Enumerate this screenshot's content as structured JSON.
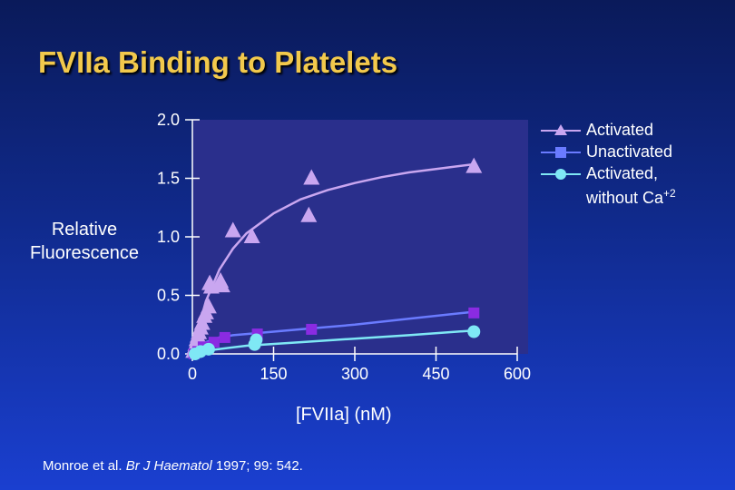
{
  "slide": {
    "title": "FVIIa Binding to Platelets",
    "source_prefix": "Monroe et al. ",
    "source_journal": "Br J Haematol",
    "source_suffix": " 1997; 99: 542."
  },
  "legend": {
    "activated": "Activated",
    "unactivated": "Unactivated",
    "without_ca_line1": "Activated,",
    "without_ca_line2": "without Ca",
    "without_ca_sup": "+2"
  },
  "colors": {
    "activated": "#c9a6f0",
    "unactivated": "#8a2be2",
    "without_ca": "#7fe8f5",
    "axis": "#ffffff",
    "plot_bg": "#2a2f8c"
  },
  "chart_data": {
    "type": "scatter",
    "title": "FVIIa Binding to Platelets",
    "xlabel": "[FVIIa] (nM)",
    "ylabel_line1": "Relative",
    "ylabel_line2": "Fluorescence",
    "xlim": [
      0,
      600
    ],
    "ylim": [
      0,
      2.0
    ],
    "xticks": [
      0,
      150,
      300,
      450,
      600
    ],
    "xtick_labels": [
      "0",
      "150",
      "300",
      "450",
      "600"
    ],
    "yticks": [
      0,
      0.5,
      1.0,
      1.5,
      2.0
    ],
    "ytick_labels": [
      "0.0",
      "0.5",
      "1.0",
      "1.5",
      "2.0"
    ],
    "legend_position": "top-right",
    "series": [
      {
        "name": "Activated",
        "marker": "triangle",
        "color": "#c9a6f0",
        "x": [
          2,
          4,
          6,
          8,
          10,
          12,
          15,
          18,
          22,
          25,
          30,
          32,
          35,
          52,
          55,
          75,
          110,
          215,
          220,
          520
        ],
        "y": [
          0.02,
          0.05,
          0.08,
          0.12,
          0.15,
          0.18,
          0.22,
          0.26,
          0.32,
          0.35,
          0.4,
          0.6,
          0.57,
          0.62,
          0.58,
          1.05,
          1.0,
          1.18,
          1.5,
          1.6
        ],
        "fit_x": [
          0,
          10,
          25,
          50,
          75,
          100,
          150,
          200,
          250,
          300,
          350,
          400,
          450,
          520
        ],
        "fit_y": [
          0.0,
          0.2,
          0.45,
          0.72,
          0.9,
          1.03,
          1.2,
          1.32,
          1.4,
          1.46,
          1.51,
          1.55,
          1.58,
          1.62
        ]
      },
      {
        "name": "Unactivated",
        "marker": "square",
        "color": "#8a2be2",
        "x": [
          3,
          10,
          20,
          40,
          60,
          120,
          220,
          520
        ],
        "y": [
          0.0,
          0.02,
          0.06,
          0.1,
          0.14,
          0.17,
          0.21,
          0.35
        ],
        "fit_x": [
          0,
          10,
          25,
          50,
          75,
          100,
          150,
          200,
          300,
          400,
          520
        ],
        "fit_y": [
          0.0,
          0.05,
          0.1,
          0.14,
          0.16,
          0.17,
          0.19,
          0.21,
          0.25,
          0.3,
          0.36
        ]
      },
      {
        "name": "Activated, without Ca+2",
        "marker": "circle",
        "color": "#7fe8f5",
        "x": [
          5,
          15,
          30,
          115,
          118,
          520
        ],
        "y": [
          0.0,
          0.02,
          0.04,
          0.08,
          0.12,
          0.19
        ],
        "fit_x": [
          0,
          30,
          100,
          200,
          300,
          400,
          520
        ],
        "fit_y": [
          0.0,
          0.03,
          0.07,
          0.1,
          0.13,
          0.16,
          0.2
        ]
      }
    ]
  }
}
